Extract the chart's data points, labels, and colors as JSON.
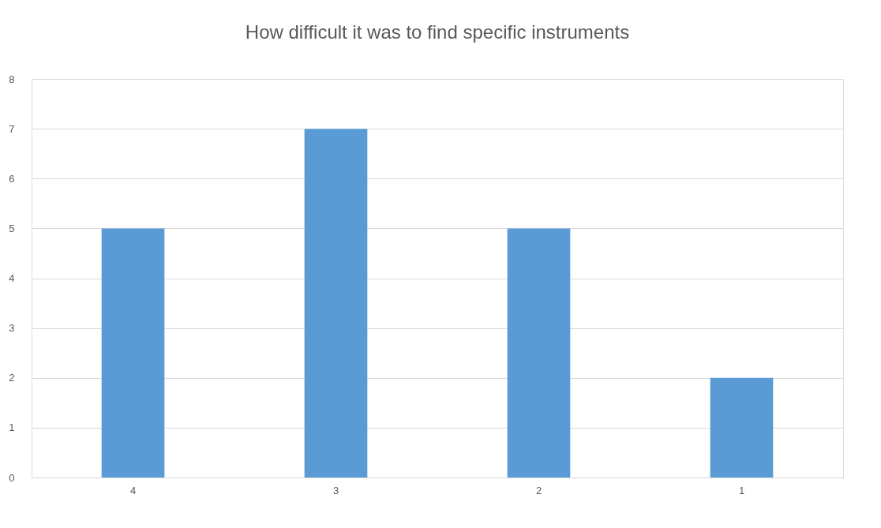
{
  "chart_data": {
    "type": "bar",
    "title": "How difficult it was to find specific instruments",
    "categories": [
      "4",
      "3",
      "2",
      "1"
    ],
    "values": [
      5,
      7,
      5,
      2
    ],
    "color": "#5b9bd5",
    "ylim": [
      0,
      8
    ],
    "yticks": [
      0,
      1,
      2,
      3,
      4,
      5,
      6,
      7,
      8
    ],
    "grid": "y"
  }
}
